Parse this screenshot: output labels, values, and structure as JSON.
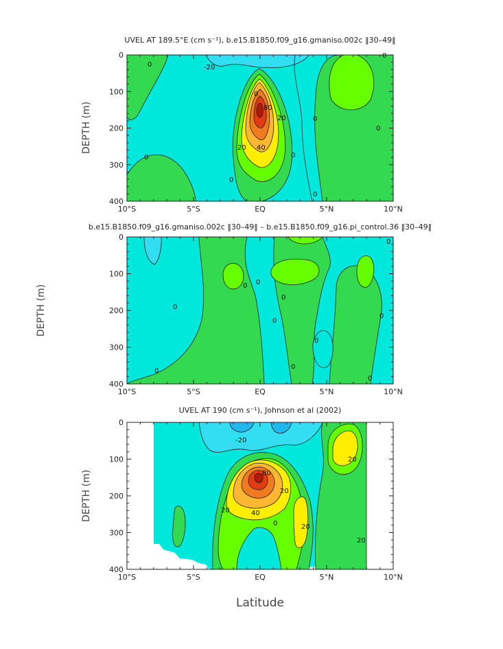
{
  "colors": {
    "cyan_light": "#33ddf2",
    "cyan": "#00e7dc",
    "green": "#33d94f",
    "bright_green": "#66ff00",
    "yellow": "#ffee00",
    "orange": "#ffb733",
    "dark_orange": "#f07a20",
    "red": "#e23b12",
    "background": "#ffffff",
    "line": "#222222"
  },
  "shared": {
    "x_ticks": [
      "10°S",
      "5°S",
      "EQ",
      "5°N",
      "10°N"
    ],
    "y_ticks": [
      "0",
      "100",
      "200",
      "300",
      "400"
    ],
    "xlabel": "Latitude",
    "ylabel": "DEPTH (m)"
  },
  "chart_data": [
    {
      "type": "heatmap",
      "title": "UVEL AT 189.5°E (cm s⁻¹), b.e15.B1850.f09_g16.gmaniso.002c ‖30–49‖",
      "ylabel": "DEPTH (m)",
      "xlim": [
        -10,
        10
      ],
      "ylim": [
        400,
        0
      ],
      "contour_labels": [
        "-20",
        "0",
        "20",
        "40",
        "0",
        "80",
        "20",
        "0",
        "0",
        "0",
        "0",
        "0",
        "0",
        "0"
      ],
      "max": {
        "lat": 0,
        "depth": 165,
        "value": 90
      }
    },
    {
      "type": "heatmap",
      "title": "b.e15.B1850.f09_g16.gmaniso.002c ‖30–49‖ – b.e15.B1850.f09_g16.pi_control.36 ‖30–49‖",
      "ylabel": "DEPTH (m)",
      "xlim": [
        -10,
        10
      ],
      "ylim": [
        400,
        0
      ],
      "contour_labels": [
        "0",
        "0",
        "0",
        "0",
        "0",
        "0",
        "0",
        "0",
        "0",
        "0",
        "0"
      ]
    },
    {
      "type": "heatmap",
      "title": "UVEL AT 190 (cm s⁻¹), Johnson et al (2002)",
      "ylabel": "DEPTH (m)",
      "xlabel": "Latitude",
      "xlim": [
        -10,
        10
      ],
      "ylim": [
        400,
        0
      ],
      "data_extent": [
        -8,
        8
      ],
      "contour_labels": [
        "-20",
        "40",
        "20",
        "20",
        "20",
        "80",
        "20",
        "20",
        "0"
      ],
      "max": {
        "lat": 0,
        "depth": 150,
        "value": 90
      }
    }
  ]
}
